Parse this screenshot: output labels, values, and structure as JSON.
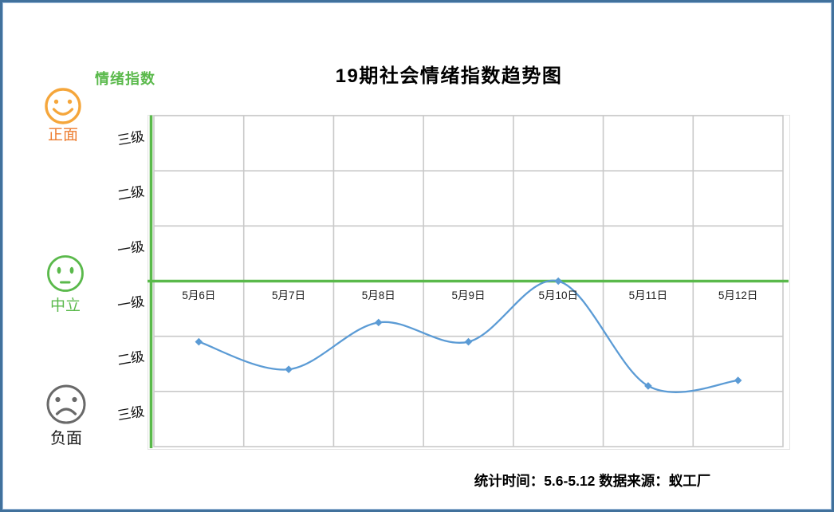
{
  "title": "19期社会情绪指数趋势图",
  "y_axis_title": "情绪指数",
  "footer_note": "统计时间：5.6-5.12 数据来源：蚁工厂",
  "sentiment_legend": {
    "positive": "正面",
    "neutral": "中立",
    "negative": "负面"
  },
  "colors": {
    "accent_green": "#5AB94B",
    "line_blue": "#5B9BD5",
    "positive_face_orange": "#F5A63B",
    "positive_label_orange": "#ED7D31",
    "negative_face_gray": "#696969",
    "grid_gray": "#C9C9C9",
    "page_border_blue": "#41719C"
  },
  "chart_data": {
    "type": "line",
    "title": "19期社会情绪指数趋势图",
    "categories": [
      "5月6日",
      "5月7日",
      "5月8日",
      "5月9日",
      "5月10日",
      "5月11日",
      "5月12日"
    ],
    "series": [
      {
        "name": "情绪指数",
        "values": [
          -1.1,
          -1.6,
          -0.75,
          -1.1,
          0,
          -1.9,
          -1.8
        ]
      }
    ],
    "y_tick_labels_top_to_bottom": [
      "三级",
      "二级",
      "一级",
      "一级",
      "二级",
      "三级"
    ],
    "y_axis_semantics": {
      "positive_zone": "正面",
      "zero_line": "中立",
      "negative_zone": "负面"
    },
    "ylim": [
      -3,
      3
    ],
    "zero_line": 0,
    "grid": true,
    "smooth": true,
    "marker": "diamond",
    "legend_position": "none"
  }
}
